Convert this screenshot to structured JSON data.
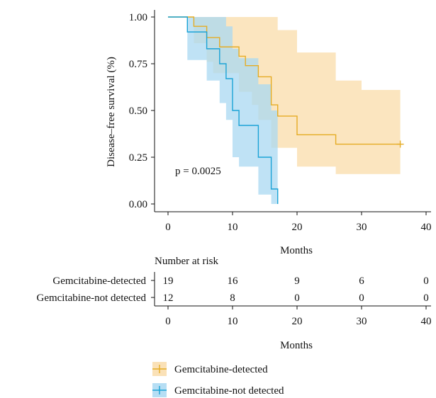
{
  "chart_data": {
    "type": "line",
    "subtype": "kaplan-meier",
    "ylabel": "Disease–free survival (%)",
    "xlabel": "Months",
    "xlim": [
      0,
      40
    ],
    "ylim": [
      0,
      1
    ],
    "x_ticks": [
      0,
      10,
      20,
      30,
      40
    ],
    "y_ticks": [
      0.0,
      0.25,
      0.5,
      0.75,
      1.0
    ],
    "y_tick_labels": [
      "0.00",
      "0.25",
      "0.50",
      "0.75",
      "1.00"
    ],
    "annotation": "p = 0.0025",
    "grid": false,
    "legend_position": "bottom",
    "series": [
      {
        "name": "Gemcitabine-detected",
        "color": "#e5ac24",
        "fill": "#f9dcaa",
        "steps": [
          [
            0,
            1.0
          ],
          [
            4,
            0.95
          ],
          [
            6,
            0.89
          ],
          [
            8,
            0.84
          ],
          [
            11,
            0.79
          ],
          [
            12,
            0.74
          ],
          [
            14,
            0.68
          ],
          [
            16,
            0.53
          ],
          [
            17,
            0.47
          ],
          [
            20,
            0.37
          ],
          [
            26,
            0.32
          ],
          [
            36,
            0.32
          ]
        ],
        "ci_lower": [
          [
            0,
            1.0
          ],
          [
            4,
            0.86
          ],
          [
            6,
            0.76
          ],
          [
            7,
            0.7
          ],
          [
            11,
            0.6
          ],
          [
            13,
            0.53
          ],
          [
            14,
            0.45
          ],
          [
            16,
            0.3
          ],
          [
            20,
            0.2
          ],
          [
            26,
            0.16
          ],
          [
            36,
            0.16
          ]
        ],
        "ci_upper": [
          [
            0,
            1.0
          ],
          [
            16,
            1.0
          ],
          [
            17,
            0.93
          ],
          [
            20,
            0.81
          ],
          [
            26,
            0.66
          ],
          [
            30,
            0.61
          ],
          [
            36,
            0.61
          ]
        ],
        "censor_marks": [
          36
        ]
      },
      {
        "name": "Gemcitabine-not detected",
        "color": "#1ba3d6",
        "fill": "#a9d8f2",
        "steps": [
          [
            0,
            1.0
          ],
          [
            3,
            0.92
          ],
          [
            6,
            0.83
          ],
          [
            8,
            0.75
          ],
          [
            9,
            0.67
          ],
          [
            10,
            0.5
          ],
          [
            11,
            0.42
          ],
          [
            14,
            0.25
          ],
          [
            16,
            0.08
          ],
          [
            17,
            0.0
          ]
        ],
        "ci_lower": [
          [
            0,
            1.0
          ],
          [
            3,
            0.77
          ],
          [
            6,
            0.66
          ],
          [
            8,
            0.54
          ],
          [
            9,
            0.45
          ],
          [
            10,
            0.25
          ],
          [
            11,
            0.2
          ],
          [
            14,
            0.05
          ],
          [
            16,
            0.0
          ]
        ],
        "ci_upper": [
          [
            0,
            1.0
          ],
          [
            8,
            1.0
          ],
          [
            9,
            0.95
          ],
          [
            10,
            0.83
          ],
          [
            11,
            0.78
          ],
          [
            14,
            0.64
          ],
          [
            16,
            0.5
          ],
          [
            17,
            0.0
          ]
        ],
        "censor_marks": []
      }
    ],
    "risk_table": {
      "title": "Number at risk",
      "xlabel": "Months",
      "rows": [
        {
          "label": "Gemcitabine-detected",
          "color": "#e5ac24",
          "values": [
            "19",
            "16",
            "9",
            "6",
            "0"
          ]
        },
        {
          "label": "Gemcitabine-not detected",
          "color": "#1ba3d6",
          "values": [
            "12",
            "8",
            "0",
            "0",
            "0"
          ]
        }
      ]
    }
  }
}
